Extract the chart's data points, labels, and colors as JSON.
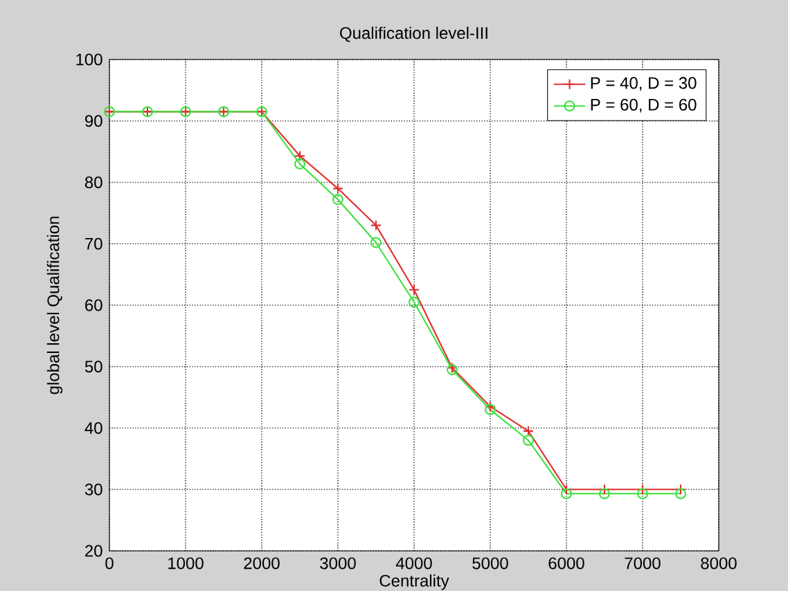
{
  "chart_data": {
    "type": "line",
    "title": "Qualification level-III",
    "xlabel": "Centrality",
    "ylabel": "global  level Qualification",
    "x": [
      0,
      500,
      1000,
      1500,
      2000,
      2500,
      3000,
      3500,
      4000,
      4500,
      5000,
      5500,
      6000,
      6500,
      7000,
      7500
    ],
    "series": [
      {
        "name": "P = 40, D = 30",
        "color": "#e03030",
        "marker": "cross",
        "values": [
          91.5,
          91.5,
          91.5,
          91.5,
          91.5,
          84.3,
          79,
          73,
          62.5,
          49.8,
          43.5,
          39.5,
          30,
          30,
          30,
          30
        ]
      },
      {
        "name": "P = 60, D = 60",
        "color": "#40e040",
        "marker": "circle",
        "values": [
          91.5,
          91.5,
          91.5,
          91.5,
          91.5,
          83,
          77.2,
          70.2,
          60.5,
          49.5,
          43,
          38,
          29.3,
          29.3,
          29.3,
          29.3
        ]
      }
    ],
    "xlim": [
      0,
      8000
    ],
    "xticks": [
      0,
      1000,
      2000,
      3000,
      4000,
      5000,
      6000,
      7000,
      8000
    ],
    "ylim": [
      20,
      100
    ],
    "yticks": [
      20,
      30,
      40,
      50,
      60,
      70,
      80,
      90,
      100
    ],
    "grid": true,
    "legend": "top right",
    "line_style": "solid"
  }
}
